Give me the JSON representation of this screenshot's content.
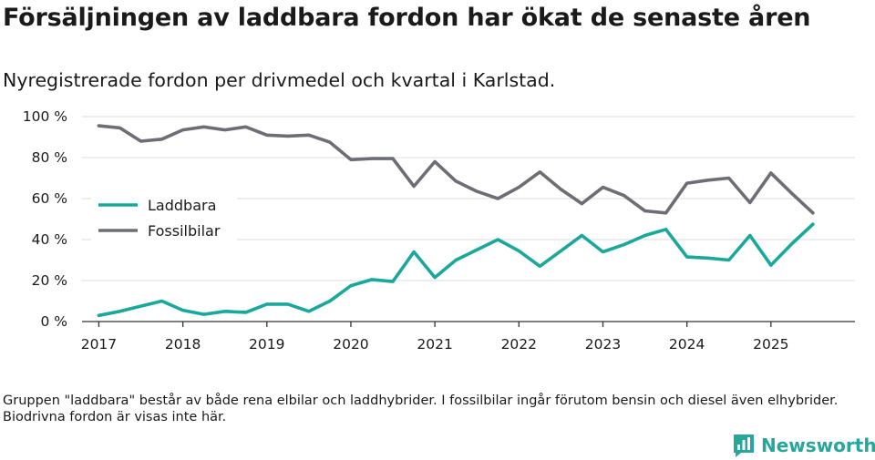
{
  "title": "Försäljningen av laddbara fordon har ökat de senaste åren",
  "subtitle": "Nyregistrerade fordon per drivmedel och kvartal i Karlstad.",
  "footnote": "Gruppen \"laddbara\" består av både rena elbilar och laddhybrider. I fossilbilar ingår förutom bensin och diesel även elhybrider. Biodrivna fordon är visas inte här.",
  "brand": {
    "name": "Newsworthy",
    "icon": "bar-chart-logo-icon",
    "color": "#27a79b"
  },
  "chart_data": {
    "type": "line",
    "title": "Försäljningen av laddbara fordon har ökat de senaste åren",
    "xlabel": "",
    "ylabel": "",
    "ylim": [
      0,
      100
    ],
    "xlim": [
      2016.8,
      2026.0
    ],
    "grid": true,
    "legend_position": "left-middle",
    "y_ticks": [
      0,
      20,
      40,
      60,
      80,
      100
    ],
    "y_tick_labels": [
      "0 %",
      "20 %",
      "40 %",
      "60 %",
      "80 %",
      "100 %"
    ],
    "x_ticks": [
      2017,
      2018,
      2019,
      2020,
      2021,
      2022,
      2023,
      2024,
      2025
    ],
    "x_tick_labels": [
      "2017",
      "2018",
      "2019",
      "2020",
      "2021",
      "2022",
      "2023",
      "2024",
      "2025"
    ],
    "x": [
      2017.0,
      2017.25,
      2017.5,
      2017.75,
      2018.0,
      2018.25,
      2018.5,
      2018.75,
      2019.0,
      2019.25,
      2019.5,
      2019.75,
      2020.0,
      2020.25,
      2020.5,
      2020.75,
      2021.0,
      2021.25,
      2021.5,
      2021.75,
      2022.0,
      2022.25,
      2022.5,
      2022.75,
      2023.0,
      2023.25,
      2023.5,
      2023.75,
      2024.0,
      2024.25,
      2024.5,
      2024.75,
      2025.0,
      2025.25,
      2025.5
    ],
    "series": [
      {
        "name": "Laddbara",
        "color": "#1aa89b",
        "values": [
          3,
          5,
          7.5,
          10,
          5.5,
          3.5,
          5,
          4.5,
          8.5,
          8.5,
          5,
          10,
          17.5,
          20.5,
          19.5,
          34,
          21.5,
          30,
          35,
          40,
          34.5,
          27,
          34.5,
          42,
          34,
          37.5,
          42,
          45,
          31.5,
          31,
          30,
          42,
          27.5,
          38,
          47.5
        ]
      },
      {
        "name": "Fossilbilar",
        "color": "#6d6e75",
        "values": [
          95.5,
          94.5,
          88,
          89,
          93.5,
          95,
          93.5,
          95,
          91,
          90.5,
          91,
          87.5,
          79,
          79.5,
          79.5,
          66,
          78,
          68.5,
          63.5,
          60,
          65.5,
          73,
          64.5,
          57.5,
          65.5,
          61.5,
          54,
          53,
          67.5,
          69,
          70,
          58,
          72.5,
          62.5,
          53
        ]
      }
    ]
  }
}
